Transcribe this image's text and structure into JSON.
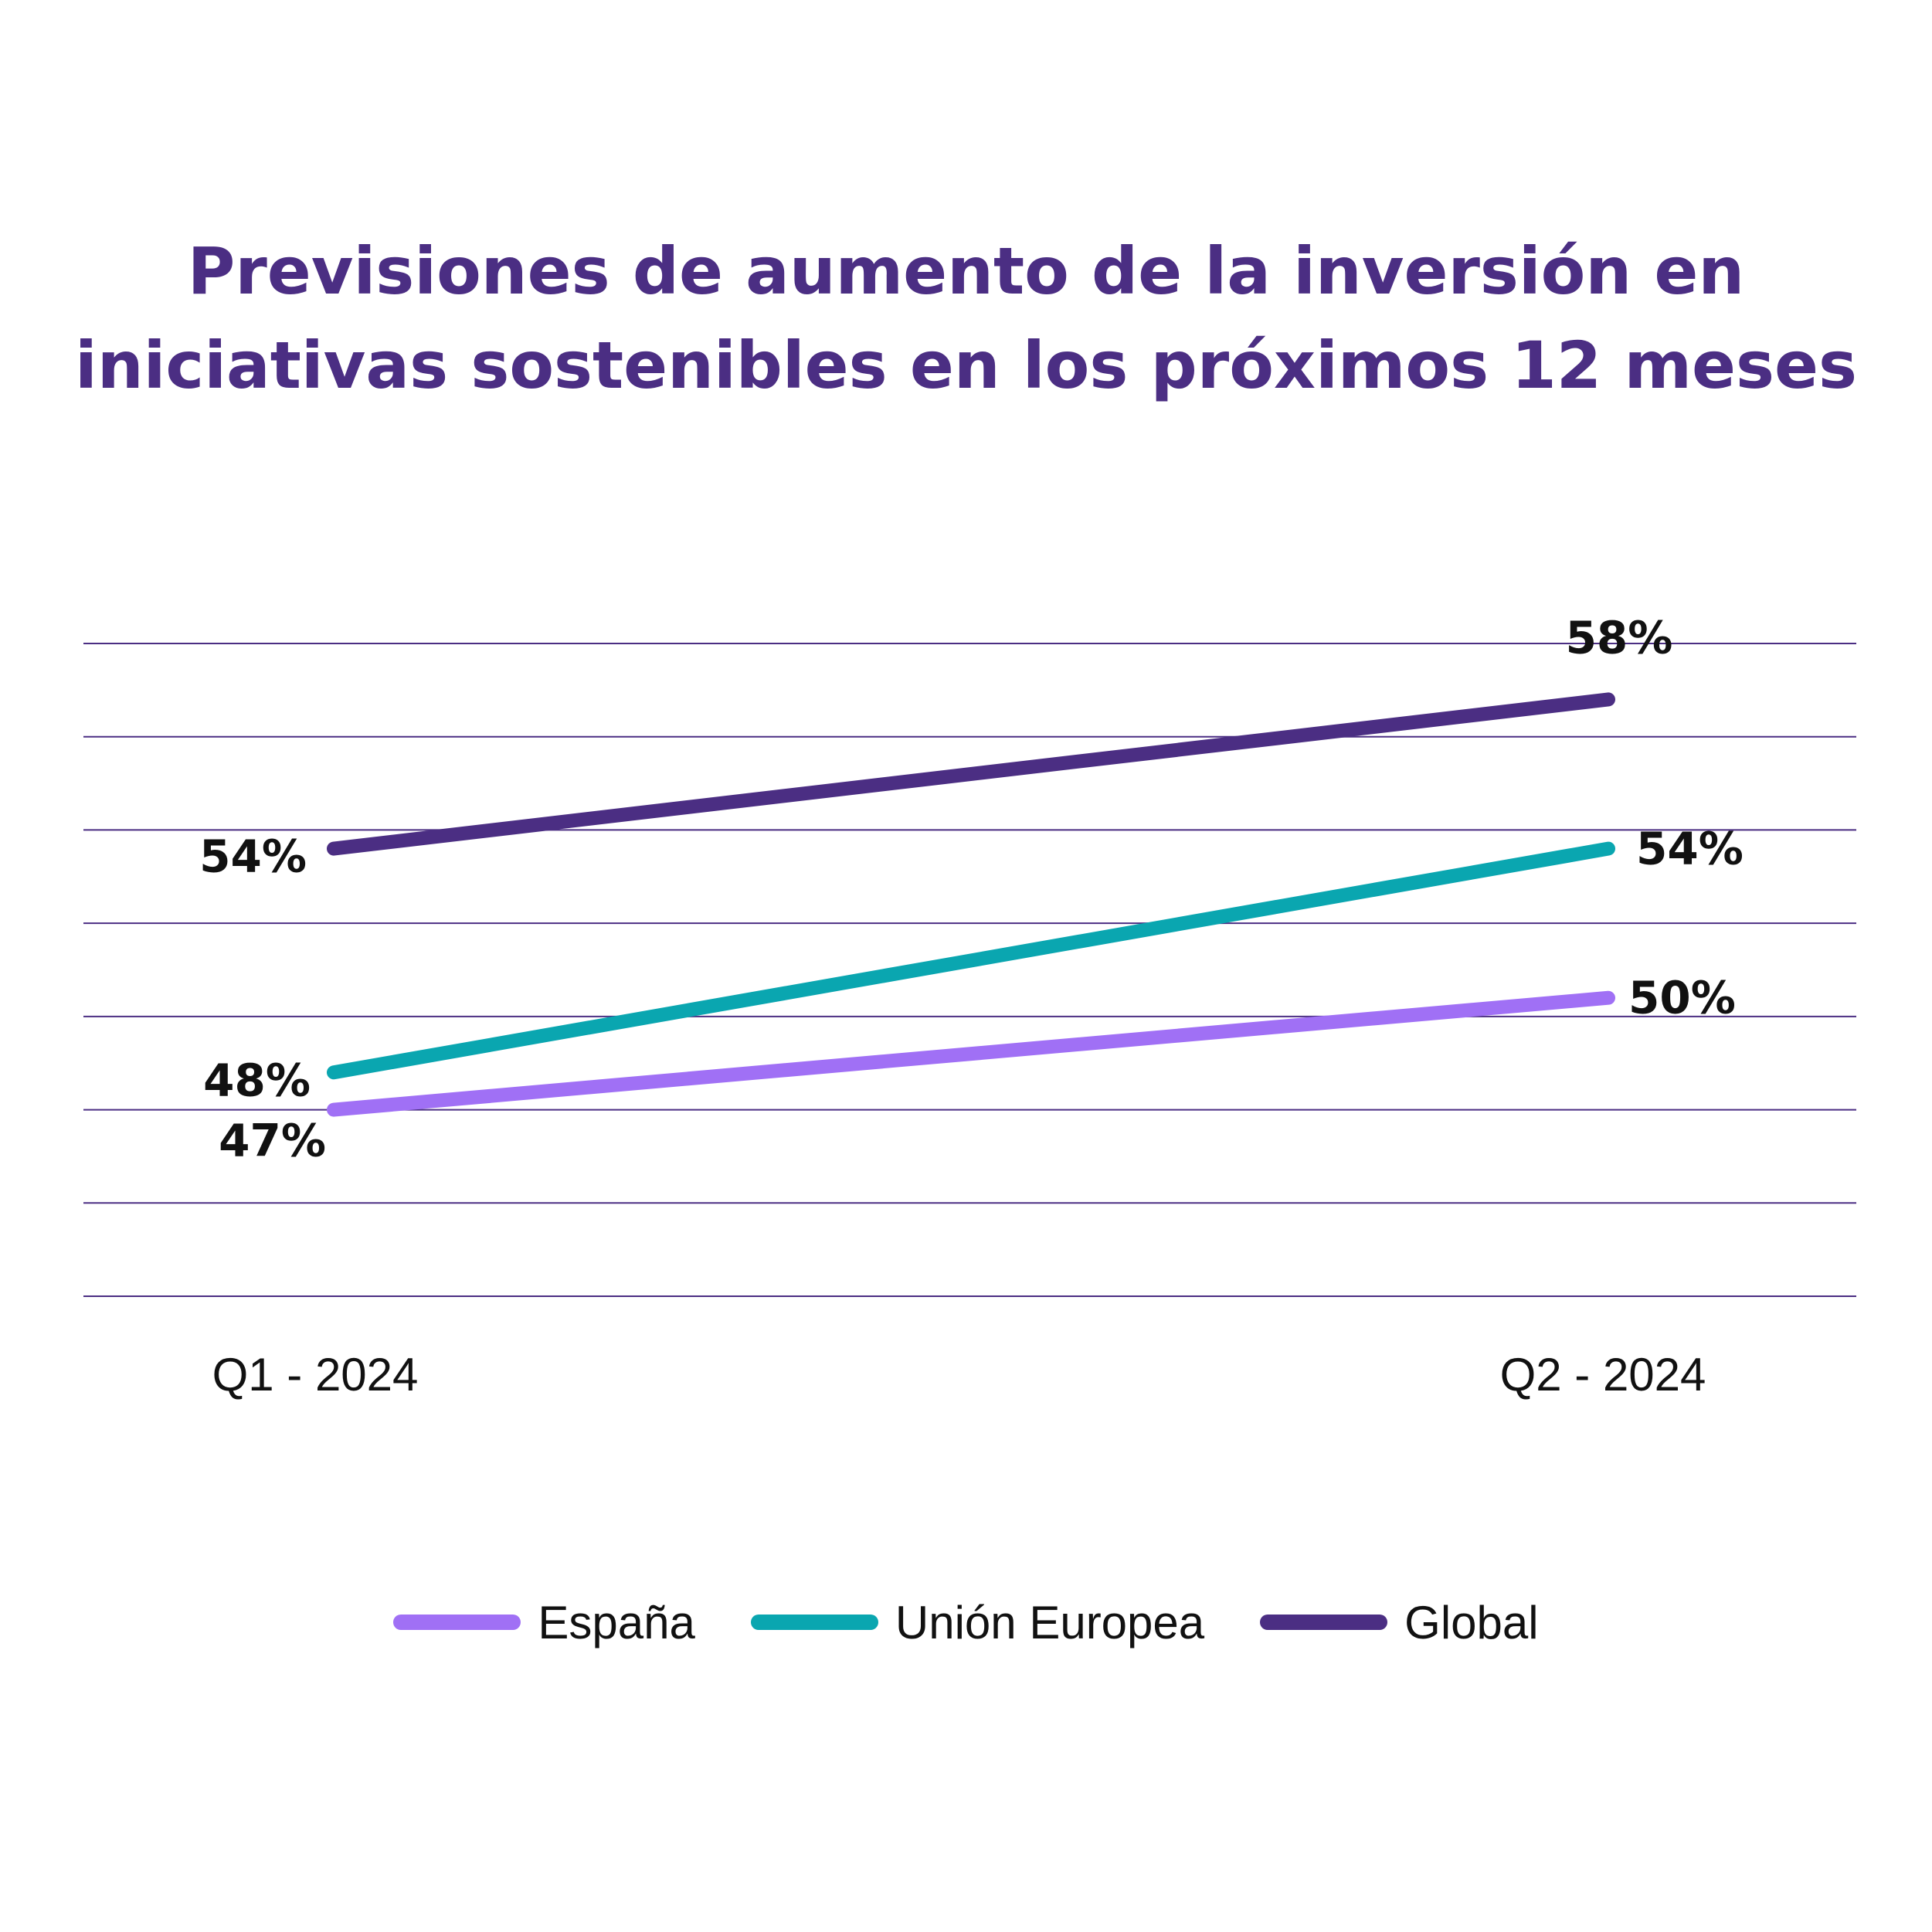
{
  "chart_data": {
    "type": "line",
    "title": "Previsiones de aumento de la inversión en iniciativas sostenibles en los próximos 12 meses",
    "title_lines": [
      "Previsiones de aumento de la inversión en",
      "iniciativas sostenibles en los próximos 12 meses"
    ],
    "categories": [
      "Q1 - 2024",
      "Q2 - 2024"
    ],
    "series": [
      {
        "name": "España",
        "values": [
          47,
          50
        ],
        "color": "#a070f5",
        "labels": [
          "47%",
          "50%"
        ]
      },
      {
        "name": "Unión Europea",
        "values": [
          48,
          54
        ],
        "color": "#0aa6b0",
        "labels": [
          "48%",
          "54%"
        ]
      },
      {
        "name": "Global",
        "values": [
          54,
          58
        ],
        "color": "#4b2e83",
        "labels": [
          "54%",
          "58%"
        ]
      }
    ],
    "ylim": [
      42,
      59.5
    ],
    "grid": true,
    "legend_position": "bottom",
    "xlabel": "",
    "ylabel": ""
  },
  "colors": {
    "title": "#4b2e83",
    "grid": "#4b2e83",
    "label": "#111111"
  }
}
